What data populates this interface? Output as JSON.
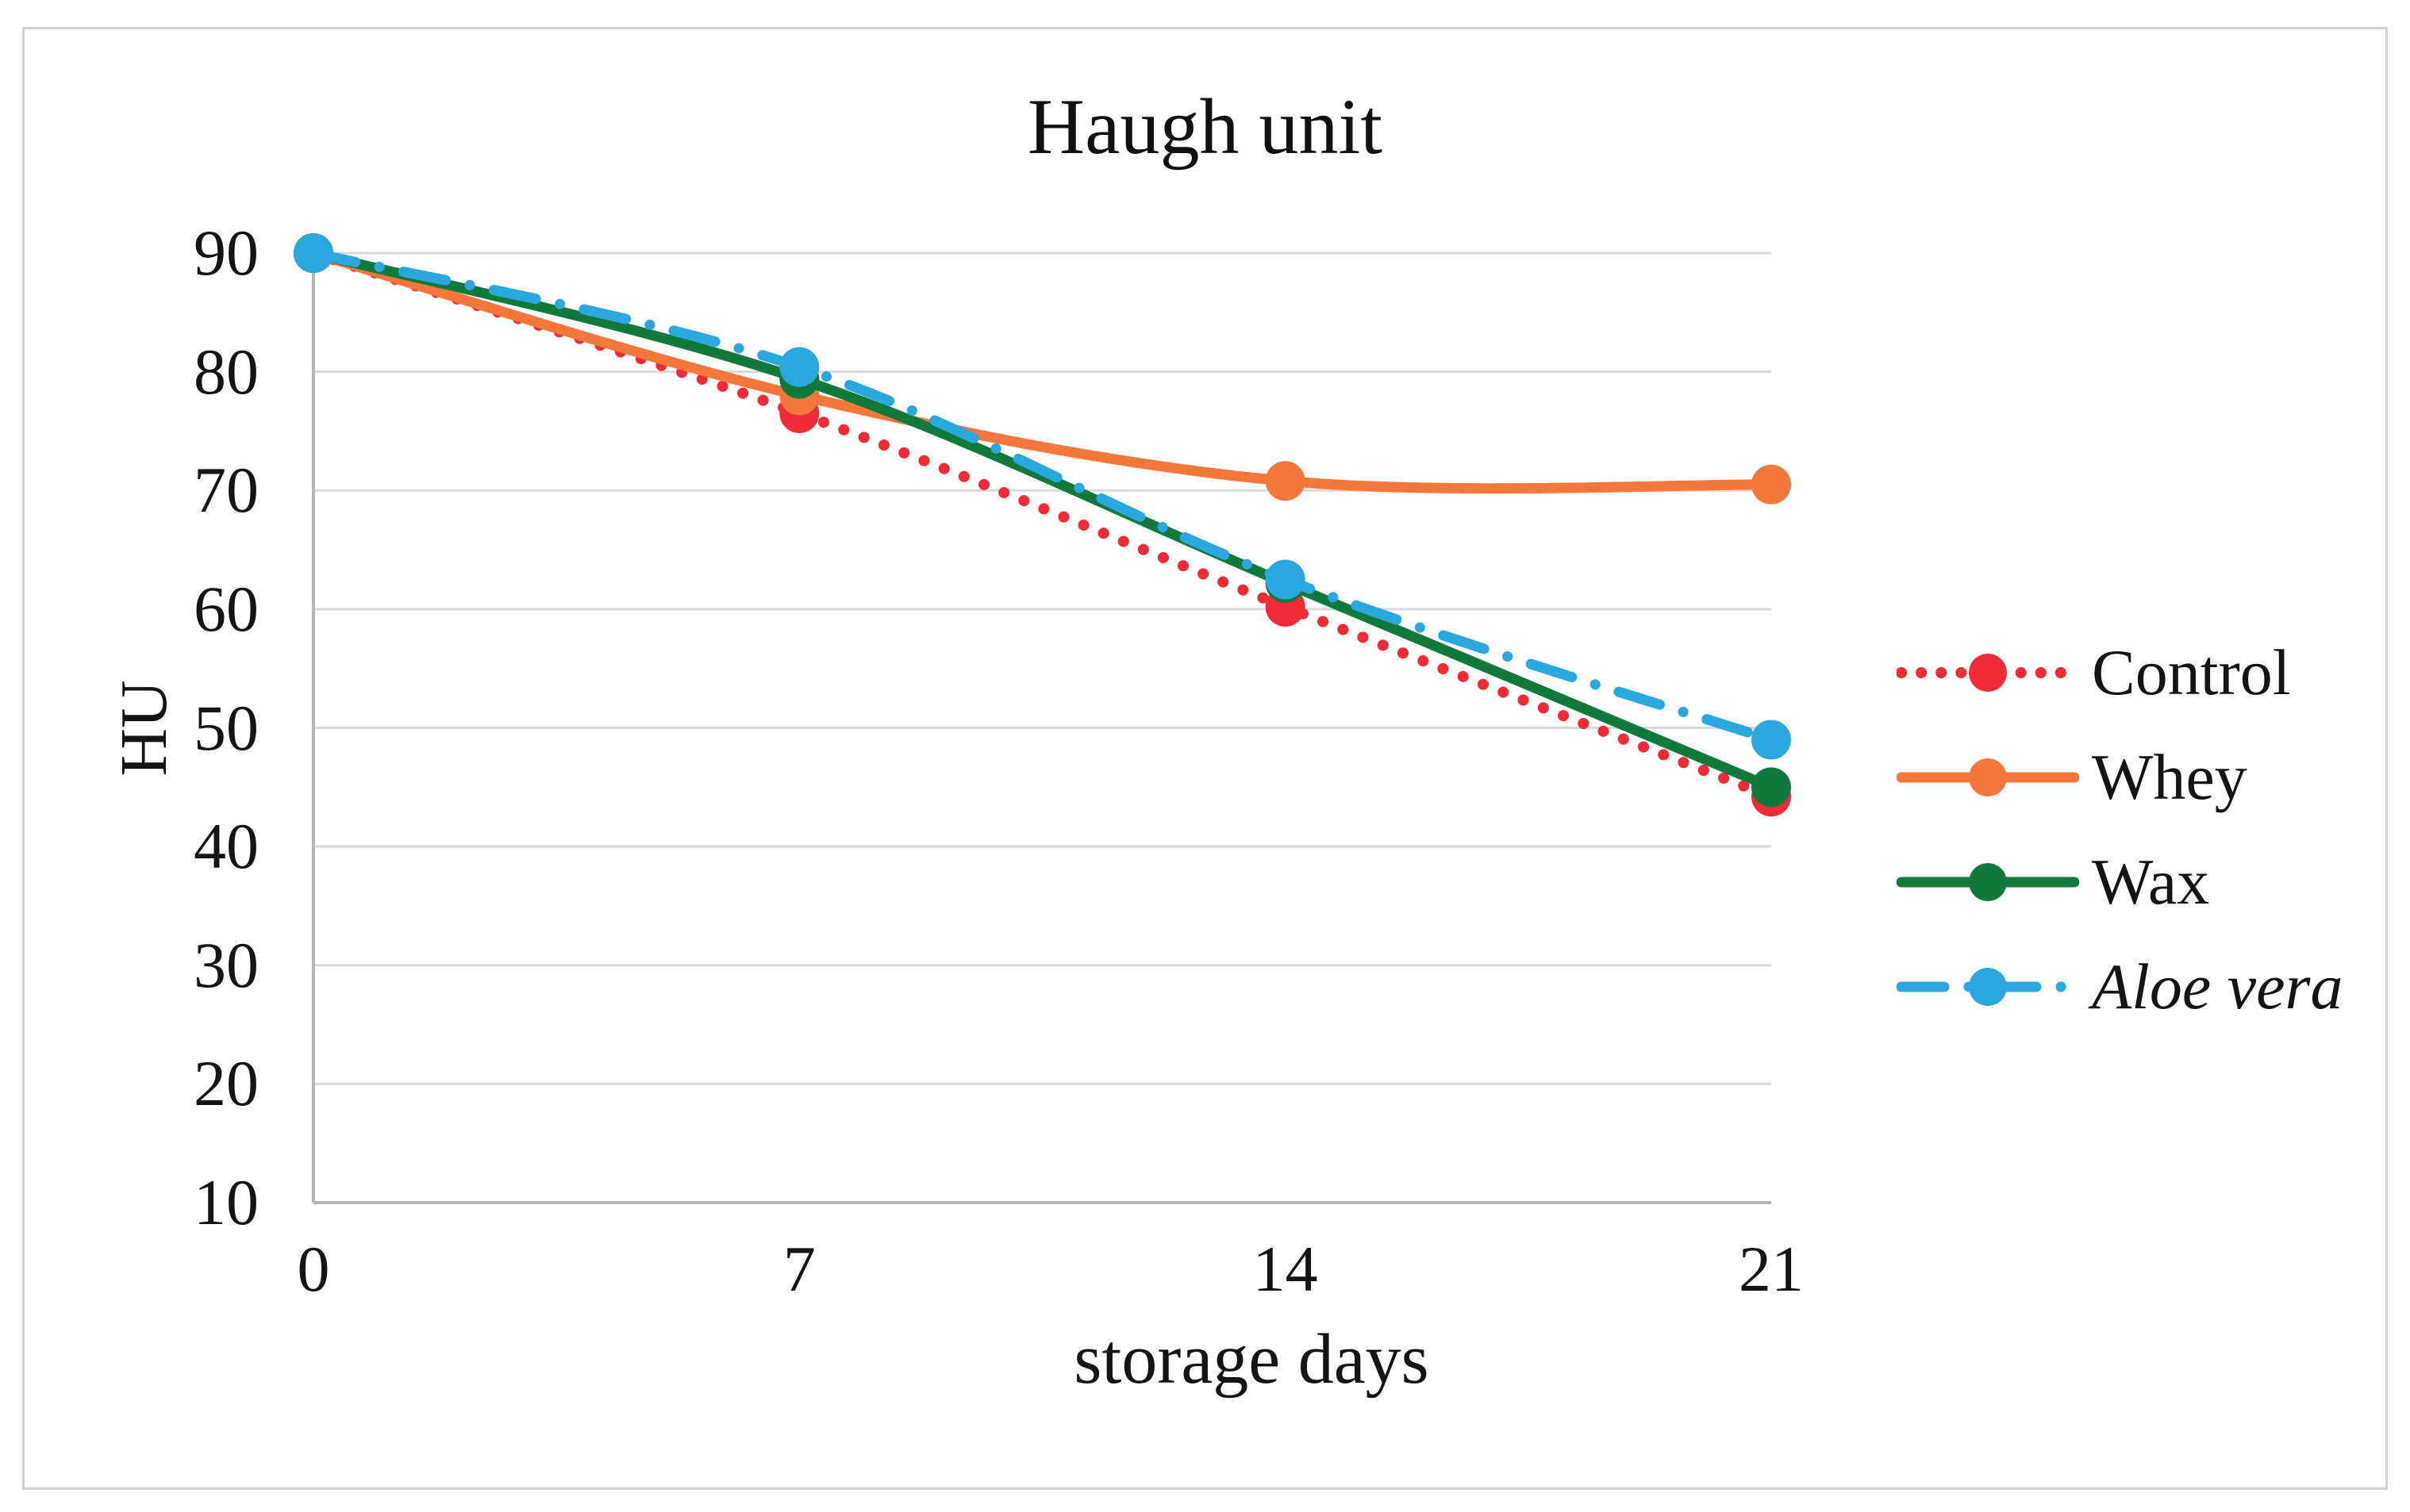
{
  "figure": {
    "background": "#ffffff",
    "border_color": "#cfd3d5"
  },
  "chart_data": {
    "type": "line",
    "title": "Haugh unit",
    "xlabel": "storage days",
    "ylabel": "HU",
    "x": [
      0,
      7,
      14,
      21
    ],
    "x_tick_labels": [
      "0",
      "7",
      "14",
      "21"
    ],
    "y_ticks": [
      90,
      80,
      70,
      60,
      50,
      40,
      30,
      20,
      10
    ],
    "xlim": [
      0,
      21
    ],
    "ylim": [
      10,
      90
    ],
    "grid": "horizontal",
    "gridline_color": "#d9d9d9",
    "axis_color": "#b3b7b9",
    "legend_position": "right",
    "series": [
      {
        "name": "Control",
        "color": "#ee2b36",
        "line_style": "dotted",
        "marker": "circle",
        "italic": false,
        "values": [
          90,
          76.5,
          60.2,
          44.2
        ]
      },
      {
        "name": "Whey",
        "color": "#f4783b",
        "line_style": "solid",
        "marker": "circle",
        "italic": false,
        "values": [
          90,
          78.0,
          70.8,
          70.5
        ]
      },
      {
        "name": "Wax",
        "color": "#11793b",
        "line_style": "solid",
        "marker": "circle",
        "italic": false,
        "values": [
          90,
          79.4,
          62.2,
          45.0
        ]
      },
      {
        "name": "Aloe vera",
        "color": "#2aa7dc",
        "line_style": "dashdot",
        "marker": "circle",
        "italic": true,
        "values": [
          90,
          80.4,
          62.5,
          49.0
        ]
      }
    ]
  }
}
